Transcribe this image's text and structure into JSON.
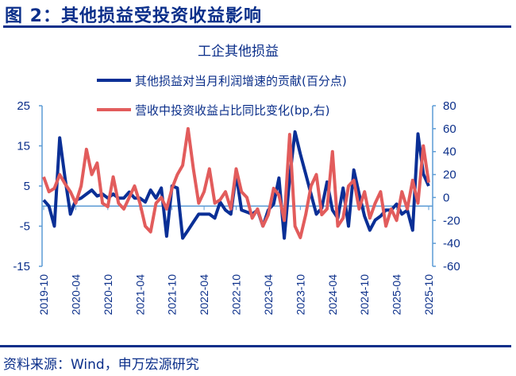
{
  "header": {
    "figure_title": "图 2：其他损益受投资收益影响"
  },
  "footer": {
    "source": "资料来源：Wind，申万宏源研究"
  },
  "colors": {
    "brand": "#0b2f8a",
    "series_blue": "#0a2f96",
    "series_red": "#e25c5c",
    "axis": "#5b9bd5"
  },
  "chart_data": {
    "type": "line",
    "title": "工企其他损益",
    "xlabel": "",
    "ylabel": "",
    "x_tick_labels": [
      "2019-10",
      "2020-04",
      "2020-10",
      "2021-04",
      "2021-10",
      "2022-04",
      "2022-10",
      "2023-04",
      "2023-10",
      "2024-04",
      "2024-10",
      "2025-04",
      "2025-10"
    ],
    "y_left": {
      "ticks": [
        25,
        15,
        5,
        -5,
        -15
      ],
      "ylim": [
        -15,
        25
      ]
    },
    "y_right": {
      "ticks": [
        80,
        60,
        40,
        20,
        0,
        -20,
        -40,
        -60
      ],
      "ylim": [
        -60,
        80
      ]
    },
    "legend_position": "top-center",
    "grid": false,
    "x_start": "2019-10",
    "x_end": "2025-10",
    "series": [
      {
        "name": "其他损益对当月利润增速的贡献(百分点)",
        "axis": "left",
        "color": "#0a2f96",
        "values": [
          1.5,
          0,
          -5,
          17,
          7,
          -2,
          1.5,
          2,
          3,
          4,
          2.5,
          3,
          2,
          3,
          2,
          2,
          3.5,
          2,
          2,
          1,
          4,
          2,
          4.5,
          -7.5,
          5,
          4.5,
          -8,
          -6,
          -4,
          -2,
          -2,
          -2,
          -3,
          1,
          -1,
          -2,
          8,
          -1,
          -1.5,
          -2,
          -1,
          -5,
          -1,
          0.5,
          7,
          -8,
          7,
          18.5,
          13,
          8,
          3,
          -2,
          -0.5,
          6,
          -1,
          -3,
          4.5,
          -5,
          9,
          3,
          -2.5,
          -6,
          -3.5,
          -2.5,
          -1,
          -1,
          0.5,
          -2,
          -1,
          -6,
          18,
          8,
          5
        ]
      },
      {
        "name": "营收中投资收益占比同比变化(bp,右)",
        "axis": "right",
        "color": "#e25c5c",
        "values": [
          18,
          5,
          8,
          20,
          12,
          5,
          -5,
          10,
          42,
          20,
          30,
          -5,
          -8,
          18,
          -5,
          -10,
          0,
          10,
          -5,
          -25,
          -30,
          -5,
          0,
          -10,
          8,
          20,
          28,
          60,
          25,
          -5,
          5,
          25,
          -5,
          -2,
          5,
          -10,
          25,
          5,
          0,
          -18,
          -10,
          -25,
          -15,
          8,
          2,
          -20,
          55,
          -25,
          -35,
          -15,
          10,
          20,
          -15,
          -10,
          40,
          -25,
          -18,
          10,
          15,
          -10,
          5,
          -18,
          -5,
          5,
          -25,
          -10,
          -20,
          5,
          -10,
          15,
          -5,
          45,
          13
        ]
      }
    ]
  }
}
